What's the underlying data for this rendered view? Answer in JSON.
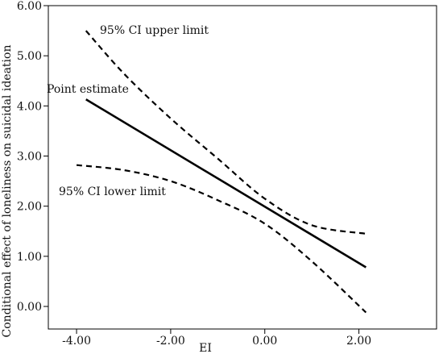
{
  "chart_data": {
    "type": "line",
    "title": "",
    "xlabel": "EI",
    "ylabel": "Conditional effect of loneliness on suicidal ideation",
    "xlim": [
      -4.6,
      3.65
    ],
    "ylim": [
      -0.45,
      6.0
    ],
    "x_ticks": [
      "-4.00",
      "-2.00",
      "0.00",
      "2.00"
    ],
    "y_ticks": [
      "0.00",
      "1.00",
      "2.00",
      "3.00",
      "4.00",
      "5.00",
      "6.00"
    ],
    "grid": false,
    "legend": "none",
    "series": [
      {
        "name": "95% CI upper limit",
        "style": "dashed",
        "x": [
          -3.8,
          -3.0,
          -2.0,
          -1.0,
          0.0,
          1.0,
          2.15
        ],
        "y": [
          5.5,
          4.65,
          3.75,
          2.95,
          2.15,
          1.62,
          1.45
        ]
      },
      {
        "name": "Point estimate",
        "style": "solid",
        "x": [
          -3.8,
          2.15
        ],
        "y": [
          4.13,
          0.78
        ]
      },
      {
        "name": "95% CI lower limit",
        "style": "dashed",
        "x": [
          -4.0,
          -3.0,
          -2.0,
          -1.0,
          0.0,
          1.0,
          2.15
        ],
        "y": [
          2.82,
          2.72,
          2.5,
          2.12,
          1.65,
          0.9,
          -0.12
        ]
      }
    ]
  },
  "colors": {
    "line": "#000000",
    "axis": "#000000"
  }
}
